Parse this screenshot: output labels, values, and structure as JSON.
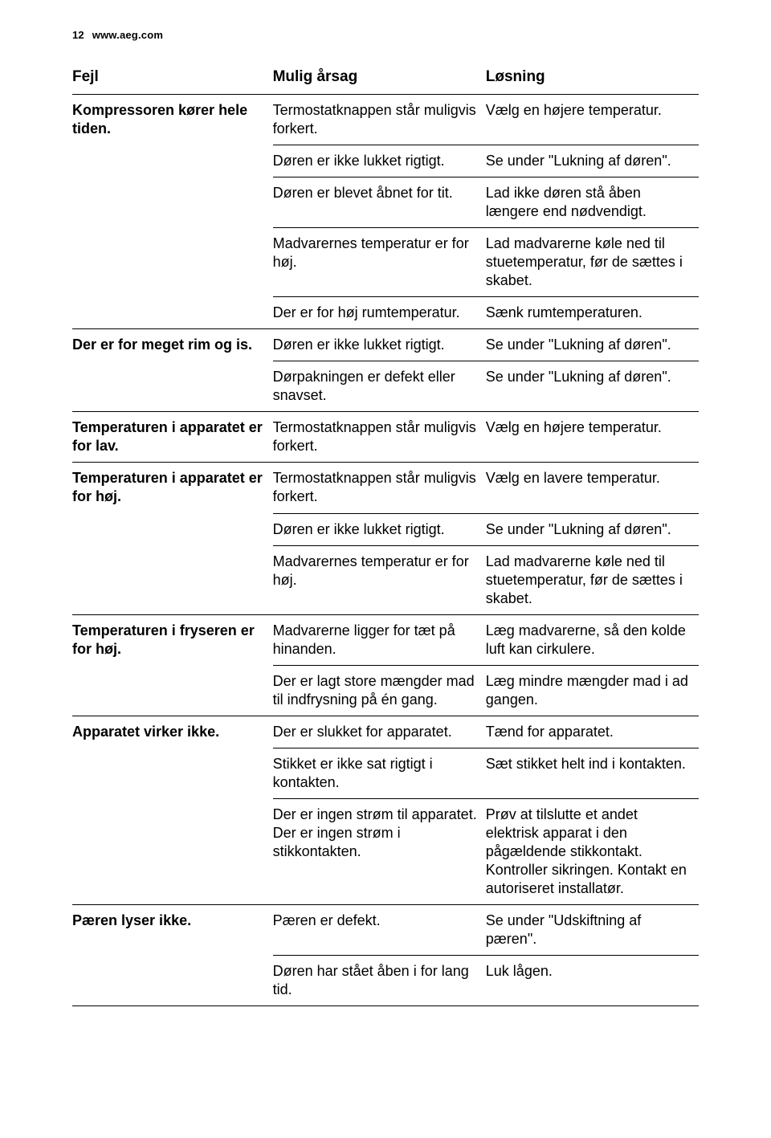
{
  "header": {
    "page_number": "12",
    "url": "www.aeg.com"
  },
  "table": {
    "columns": [
      "Fejl",
      "Mulig årsag",
      "Løsning"
    ],
    "rows": [
      {
        "fejl": "Kompressoren kører hele tiden.",
        "cause": "Termostatknappen står muligvis forkert.",
        "fix": "Vælg en højere temperatur."
      },
      {
        "fejl": "",
        "cause": "Døren er ikke lukket rigtigt.",
        "fix": "Se under \"Lukning af døren\"."
      },
      {
        "fejl": "",
        "cause": "Døren er blevet åbnet for tit.",
        "fix": "Lad ikke døren stå åben længere end nødvendigt."
      },
      {
        "fejl": "",
        "cause": "Madvarernes temperatur er for høj.",
        "fix": "Lad madvarerne køle ned til stuetemperatur, før de sættes i skabet."
      },
      {
        "fejl": "",
        "cause": "Der er for høj rumtemperatur.",
        "fix": "Sænk rumtemperaturen."
      },
      {
        "fejl": "Der er for meget rim og is.",
        "cause": "Døren er ikke lukket rigtigt.",
        "fix": "Se under \"Lukning af døren\"."
      },
      {
        "fejl": "",
        "cause": "Dørpakningen er defekt eller snavset.",
        "fix": "Se under \"Lukning af døren\"."
      },
      {
        "fejl": "Temperaturen i apparatet er for lav.",
        "cause": "Termostatknappen står muligvis forkert.",
        "fix": "Vælg en højere temperatur."
      },
      {
        "fejl": "Temperaturen i apparatet er for høj.",
        "cause": "Termostatknappen står muligvis forkert.",
        "fix": "Vælg en lavere temperatur."
      },
      {
        "fejl": "",
        "cause": "Døren er ikke lukket rigtigt.",
        "fix": "Se under \"Lukning af døren\"."
      },
      {
        "fejl": "",
        "cause": "Madvarernes temperatur er for høj.",
        "fix": "Lad madvarerne køle ned til stuetemperatur, før de sættes i skabet."
      },
      {
        "fejl": "Temperaturen i fryseren er for høj.",
        "cause": "Madvarerne ligger for tæt på hinanden.",
        "fix": "Læg madvarerne, så den kolde luft kan cirkulere."
      },
      {
        "fejl": "",
        "cause": "Der er lagt store mængder mad til indfrysning på én gang.",
        "fix": "Læg mindre mængder mad i ad gangen."
      },
      {
        "fejl": "Apparatet virker ikke.",
        "cause": "Der er slukket for apparatet.",
        "fix": "Tænd for apparatet."
      },
      {
        "fejl": "",
        "cause": "Stikket er ikke sat rigtigt i kontakten.",
        "fix": "Sæt stikket helt ind i kontakten."
      },
      {
        "fejl": "",
        "cause": "Der er ingen strøm til apparatet. Der er ingen strøm i stikkontakten.",
        "fix": "Prøv at tilslutte et andet elektrisk apparat i den pågældende stikkontakt. Kontroller sikringen. Kontakt en autoriseret installatør."
      },
      {
        "fejl": "Pæren lyser ikke.",
        "cause": "Pæren er defekt.",
        "fix": "Se under \"Udskiftning af pæren\"."
      },
      {
        "fejl": "",
        "cause": "Døren har stået åben i for lang tid.",
        "fix": "Luk lågen."
      }
    ]
  }
}
